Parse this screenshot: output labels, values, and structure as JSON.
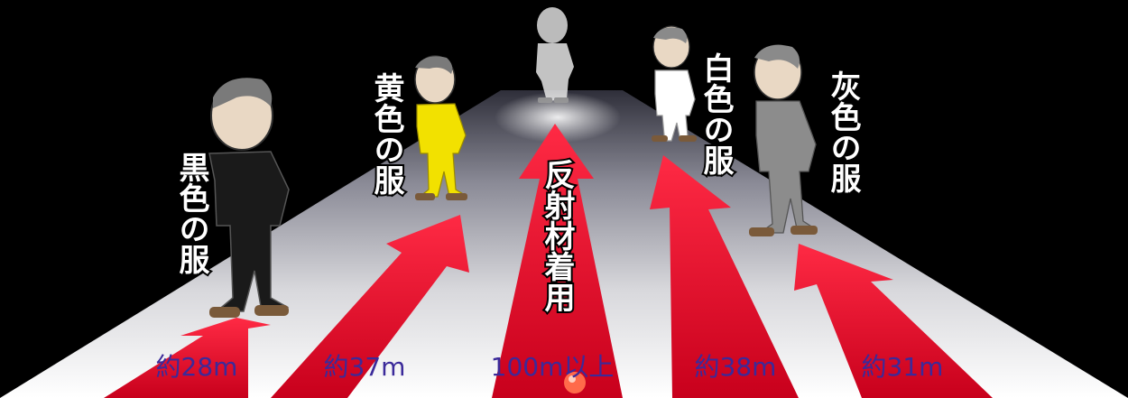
{
  "figures": [
    {
      "id": "black",
      "clothing_label": "黒色の服",
      "distance": "約28m",
      "color": "#1a1a1a"
    },
    {
      "id": "yellow",
      "clothing_label": "黄色の服",
      "distance": "約37m",
      "color": "#f2e100"
    },
    {
      "id": "reflective",
      "clothing_label": "反射材着用",
      "distance": "100m以上",
      "color": "#f4f4f4"
    },
    {
      "id": "white",
      "clothing_label": "白色の服",
      "distance": "約38m",
      "color": "#ffffff"
    },
    {
      "id": "gray",
      "clothing_label": "灰色の服",
      "distance": "約31m",
      "color": "#8c8c8c"
    }
  ],
  "colors": {
    "arrow": "#e0142a",
    "road_light": "#ffffff",
    "road_dark": "#3a3a48",
    "background": "#000000"
  }
}
